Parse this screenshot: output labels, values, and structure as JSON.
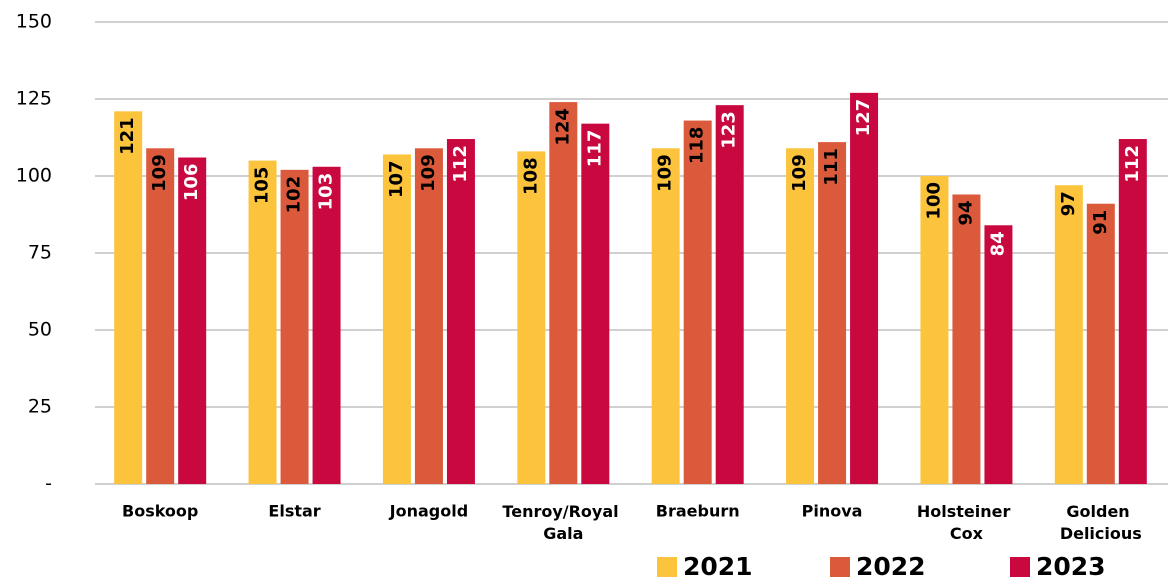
{
  "chart_data": {
    "type": "bar",
    "categories": [
      "Boskoop",
      "Elstar",
      "Jonagold",
      "Tenroy/Royal Gala",
      "Braeburn",
      "Pinova",
      "Holsteiner Cox",
      "Golden Delicious"
    ],
    "series": [
      {
        "name": "2021",
        "color": "#fcc33c",
        "values": [
          121,
          105,
          107,
          108,
          109,
          109,
          100,
          97
        ]
      },
      {
        "name": "2022",
        "color": "#dc5a3c",
        "values": [
          109,
          102,
          109,
          124,
          118,
          111,
          94,
          91
        ]
      },
      {
        "name": "2023",
        "color": "#c8083f",
        "values": [
          106,
          103,
          112,
          117,
          123,
          127,
          84,
          112
        ]
      }
    ],
    "ylim": [
      0,
      150
    ],
    "yticks": [
      {
        "value": 0,
        "label": "-"
      },
      25,
      50,
      75,
      100,
      125,
      150
    ],
    "grid": true,
    "legend": "bottom"
  }
}
